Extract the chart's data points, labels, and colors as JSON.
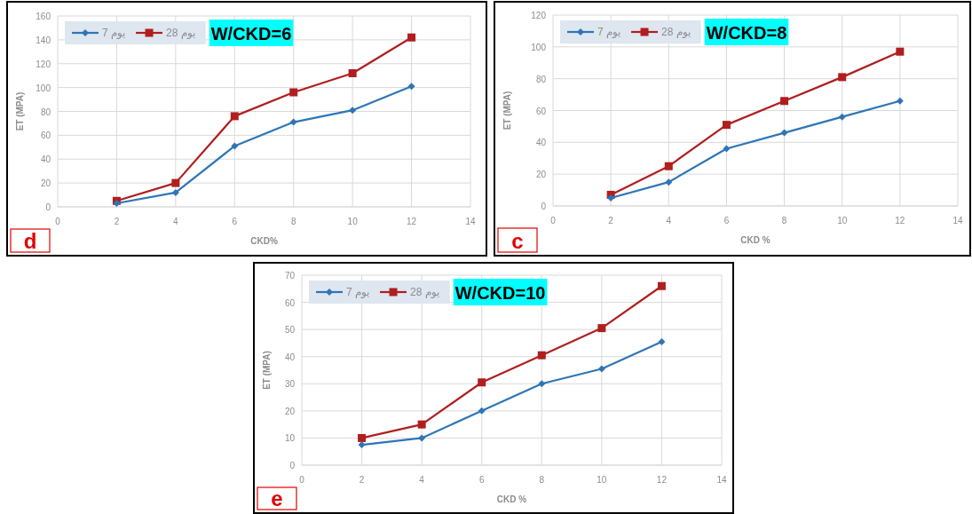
{
  "chart_data": [
    {
      "type": "line",
      "title": "W/CKD=6",
      "xlabel": "CKD%",
      "ylabel": "ET (MPA)",
      "annotations": [
        "d"
      ],
      "x": [
        2,
        4,
        6,
        8,
        10,
        12
      ],
      "xlim": [
        0,
        14
      ],
      "xticks": [
        0,
        2,
        4,
        6,
        8,
        10,
        12,
        14
      ],
      "ylim": [
        0,
        160
      ],
      "yticks": [
        0,
        20,
        40,
        60,
        80,
        100,
        120,
        140,
        160
      ],
      "grid": true,
      "legend": "top left",
      "line_style": "solid",
      "series": [
        {
          "name": "يوم 7",
          "color": "#2e75b6",
          "marker": "diamond",
          "values": [
            3,
            12,
            51,
            71,
            81,
            101
          ]
        },
        {
          "name": "يوم 28",
          "color": "#b01e1e",
          "marker": "square",
          "values": [
            5,
            20,
            76,
            96,
            112,
            142
          ]
        }
      ]
    },
    {
      "type": "line",
      "title": "W/CKD=8",
      "xlabel": "CKD %",
      "ylabel": "ET (MPA)",
      "annotations": [
        "c"
      ],
      "x": [
        2,
        4,
        6,
        8,
        10,
        12
      ],
      "xlim": [
        0,
        14
      ],
      "xticks": [
        0,
        2,
        4,
        6,
        8,
        10,
        12,
        14
      ],
      "ylim": [
        0,
        120
      ],
      "yticks": [
        0,
        20,
        40,
        60,
        80,
        100,
        120
      ],
      "grid": true,
      "legend": "top left",
      "line_style": "solid",
      "series": [
        {
          "name": "يوم 7",
          "color": "#2e75b6",
          "marker": "diamond",
          "values": [
            5,
            15,
            36,
            46,
            56,
            66
          ]
        },
        {
          "name": "يوم 28",
          "color": "#b01e1e",
          "marker": "square",
          "values": [
            7,
            25,
            51,
            66,
            81,
            97
          ]
        }
      ]
    },
    {
      "type": "line",
      "title": "W/CKD=10",
      "xlabel": "CKD %",
      "ylabel": "ET (MPA)",
      "annotations": [
        "e"
      ],
      "x": [
        2,
        4,
        6,
        8,
        10,
        12
      ],
      "xlim": [
        0,
        14
      ],
      "xticks": [
        0,
        2,
        4,
        6,
        8,
        10,
        12,
        14
      ],
      "ylim": [
        0,
        70
      ],
      "yticks": [
        0,
        10,
        20,
        30,
        40,
        50,
        60,
        70
      ],
      "grid": true,
      "legend": "top left",
      "line_style": "solid",
      "series": [
        {
          "name": "يوم 7",
          "color": "#2e75b6",
          "marker": "diamond",
          "values": [
            7.5,
            10,
            20,
            30,
            35.5,
            45.5
          ]
        },
        {
          "name": "يوم 28",
          "color": "#b01e1e",
          "marker": "square",
          "values": [
            10,
            15,
            30.5,
            40.5,
            50.5,
            66
          ]
        }
      ]
    }
  ]
}
